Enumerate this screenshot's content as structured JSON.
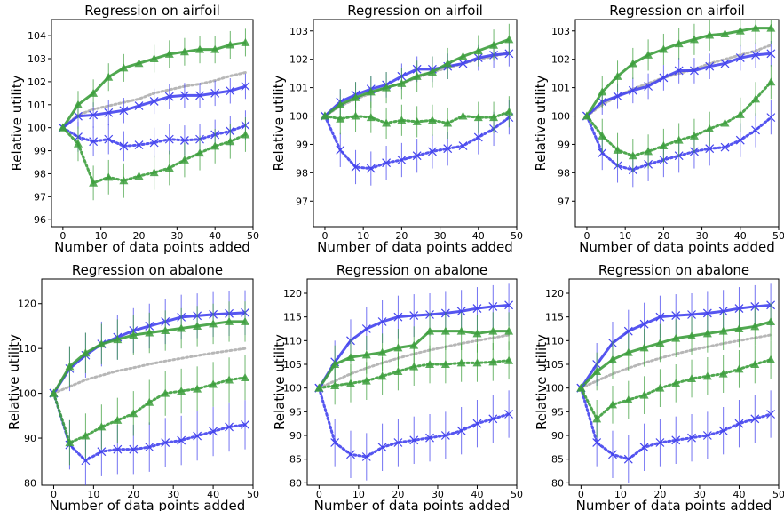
{
  "colors": {
    "blue": "#4444ee",
    "green": "#3d9f3d",
    "gray": "#aaaaaa"
  },
  "chart_data": [
    {
      "type": "line",
      "title": "Regression on airfoil",
      "xlabel": "Number of data points added",
      "ylabel": "Relative utility",
      "xlim": [
        -3,
        50
      ],
      "ylim": [
        95.7,
        104.7
      ],
      "xticks": [
        "0",
        "10",
        "20",
        "30",
        "40",
        "50"
      ],
      "yticks": [
        "96",
        "97",
        "98",
        "99",
        "100",
        "101",
        "102",
        "103",
        "104"
      ],
      "x": [
        0,
        4,
        8,
        12,
        16,
        20,
        24,
        28,
        32,
        36,
        40,
        44,
        48
      ],
      "series": [
        {
          "color": "blue",
          "style": "solid",
          "marker": "x",
          "err": 0.55,
          "values": [
            100,
            100.5,
            100.55,
            100.65,
            100.75,
            100.95,
            101.15,
            101.35,
            101.4,
            101.4,
            101.5,
            101.6,
            101.8
          ]
        },
        {
          "color": "green",
          "style": "solid",
          "marker": "triangle",
          "err": 0.6,
          "values": [
            100,
            101.0,
            101.5,
            102.2,
            102.6,
            102.8,
            103.0,
            103.2,
            103.3,
            103.4,
            103.4,
            103.6,
            103.7
          ]
        },
        {
          "color": "blue",
          "style": "dotted",
          "marker": "x",
          "err": 0.65,
          "values": [
            100,
            99.6,
            99.4,
            99.5,
            99.2,
            99.25,
            99.35,
            99.5,
            99.45,
            99.5,
            99.7,
            99.85,
            100.1
          ]
        },
        {
          "color": "green",
          "style": "dotted",
          "marker": "triangle",
          "err": 0.75,
          "values": [
            100,
            99.3,
            97.6,
            97.85,
            97.7,
            97.9,
            98.05,
            98.25,
            98.6,
            98.9,
            99.2,
            99.4,
            99.7
          ]
        },
        {
          "color": "gray",
          "style": "dotted",
          "marker": "none",
          "err": 0,
          "values": [
            100,
            100.55,
            100.8,
            100.95,
            101.1,
            101.25,
            101.5,
            101.65,
            101.8,
            101.9,
            102.05,
            102.25,
            102.4
          ]
        }
      ]
    },
    {
      "type": "line",
      "title": "Regression on airfoil",
      "xlabel": "Number of data points added",
      "ylabel": "Relative utility",
      "xlim": [
        -3,
        50
      ],
      "ylim": [
        96.1,
        103.4
      ],
      "xticks": [
        "0",
        "10",
        "20",
        "30",
        "40",
        "50"
      ],
      "yticks": [
        "97",
        "98",
        "99",
        "100",
        "101",
        "102",
        "103"
      ],
      "x": [
        0,
        4,
        8,
        12,
        16,
        20,
        24,
        28,
        32,
        36,
        40,
        44,
        48
      ],
      "series": [
        {
          "color": "blue",
          "style": "solid",
          "marker": "x",
          "err": 0.45,
          "values": [
            100,
            100.5,
            100.75,
            100.95,
            101.1,
            101.4,
            101.65,
            101.65,
            101.75,
            101.85,
            102.05,
            102.15,
            102.2
          ]
        },
        {
          "color": "green",
          "style": "solid",
          "marker": "triangle",
          "err": 0.55,
          "values": [
            100,
            100.4,
            100.65,
            100.85,
            101.0,
            101.15,
            101.4,
            101.55,
            101.85,
            102.1,
            102.3,
            102.5,
            102.7
          ]
        },
        {
          "color": "blue",
          "style": "dotted",
          "marker": "x",
          "err": 0.6,
          "values": [
            100,
            98.8,
            98.2,
            98.15,
            98.35,
            98.45,
            98.6,
            98.75,
            98.85,
            98.95,
            99.25,
            99.55,
            99.95
          ]
        },
        {
          "color": "green",
          "style": "dotted",
          "marker": "triangle",
          "err": 0.55,
          "values": [
            100,
            99.9,
            100.0,
            99.95,
            99.75,
            99.85,
            99.8,
            99.85,
            99.75,
            100.0,
            99.95,
            99.95,
            100.15
          ]
        },
        {
          "color": "gray",
          "style": "dotted",
          "marker": "none",
          "err": 0,
          "values": [
            100,
            100.35,
            100.6,
            100.8,
            101.0,
            101.15,
            101.35,
            101.55,
            101.7,
            101.85,
            102.0,
            102.1,
            102.25
          ]
        }
      ]
    },
    {
      "type": "line",
      "title": "Regression on airfoil",
      "xlabel": "Number of data points added",
      "ylabel": "Relative utility",
      "xlim": [
        -3,
        50
      ],
      "ylim": [
        96.1,
        103.4
      ],
      "xticks": [
        "0",
        "10",
        "20",
        "30",
        "40",
        "50"
      ],
      "yticks": [
        "97",
        "98",
        "99",
        "100",
        "101",
        "102",
        "103"
      ],
      "x": [
        0,
        4,
        8,
        12,
        16,
        20,
        24,
        28,
        32,
        36,
        40,
        44,
        48
      ],
      "series": [
        {
          "color": "blue",
          "style": "solid",
          "marker": "x",
          "err": 0.45,
          "values": [
            100,
            100.5,
            100.7,
            100.9,
            101.05,
            101.35,
            101.6,
            101.6,
            101.75,
            101.85,
            102.05,
            102.15,
            102.2
          ]
        },
        {
          "color": "green",
          "style": "solid",
          "marker": "triangle",
          "err": 0.55,
          "values": [
            100,
            100.85,
            101.4,
            101.85,
            102.15,
            102.35,
            102.55,
            102.7,
            102.85,
            102.9,
            103.0,
            103.1,
            103.1
          ]
        },
        {
          "color": "blue",
          "style": "dotted",
          "marker": "x",
          "err": 0.6,
          "values": [
            100,
            98.7,
            98.25,
            98.1,
            98.3,
            98.45,
            98.6,
            98.75,
            98.85,
            98.9,
            99.15,
            99.5,
            99.95
          ]
        },
        {
          "color": "green",
          "style": "dotted",
          "marker": "triangle",
          "err": 0.6,
          "values": [
            100,
            99.3,
            98.8,
            98.6,
            98.75,
            98.95,
            99.15,
            99.3,
            99.55,
            99.75,
            100.05,
            100.6,
            101.2
          ]
        },
        {
          "color": "gray",
          "style": "dotted",
          "marker": "none",
          "err": 0,
          "values": [
            100,
            100.4,
            100.7,
            100.95,
            101.15,
            101.35,
            101.5,
            101.65,
            101.85,
            102.0,
            102.15,
            102.3,
            102.5
          ]
        }
      ]
    },
    {
      "type": "line",
      "title": "Regression on abalone",
      "xlabel": "Number of data points added",
      "ylabel": "Relative utility",
      "xlim": [
        -3,
        50
      ],
      "ylim": [
        79.5,
        125.5
      ],
      "xticks": [
        "0",
        "10",
        "20",
        "30",
        "40",
        "50"
      ],
      "yticks": [
        "80",
        "90",
        "100",
        "110",
        "120"
      ],
      "x": [
        0,
        4,
        8,
        12,
        16,
        20,
        24,
        28,
        32,
        36,
        40,
        44,
        48
      ],
      "series": [
        {
          "color": "blue",
          "style": "solid",
          "marker": "x",
          "err": 5,
          "values": [
            100,
            105.5,
            108.5,
            111.0,
            112.5,
            114.0,
            115.0,
            116.0,
            117.0,
            117.3,
            117.6,
            117.8,
            118.0
          ]
        },
        {
          "color": "green",
          "style": "solid",
          "marker": "triangle",
          "err": 4.5,
          "values": [
            100,
            106.0,
            109.0,
            111.0,
            112.0,
            113.0,
            113.5,
            114.0,
            114.5,
            115.0,
            115.5,
            116.0,
            116.0
          ]
        },
        {
          "color": "blue",
          "style": "dotted",
          "marker": "x",
          "err": 5.5,
          "values": [
            100,
            88.5,
            85.0,
            87.0,
            87.5,
            87.5,
            88.0,
            89.0,
            89.5,
            90.5,
            91.5,
            92.5,
            93.0
          ]
        },
        {
          "color": "green",
          "style": "dotted",
          "marker": "triangle",
          "err": 5,
          "values": [
            100,
            89.0,
            90.5,
            92.5,
            94.0,
            95.5,
            98.0,
            100.0,
            100.5,
            101.0,
            102.0,
            103.0,
            103.5
          ]
        },
        {
          "color": "gray",
          "style": "dotted",
          "marker": "none",
          "err": 0,
          "values": [
            100,
            101.5,
            103.0,
            104.0,
            105.0,
            105.7,
            106.5,
            107.2,
            107.8,
            108.4,
            109.0,
            109.5,
            110.0
          ]
        }
      ]
    },
    {
      "type": "line",
      "title": "Regression on abalone",
      "xlabel": "Number of data points added",
      "ylabel": "Relative utility",
      "xlim": [
        -3,
        50
      ],
      "ylim": [
        79.5,
        123.0
      ],
      "xticks": [
        "0",
        "10",
        "20",
        "30",
        "40",
        "50"
      ],
      "yticks": [
        "80",
        "85",
        "90",
        "95",
        "100",
        "105",
        "110",
        "115",
        "120"
      ],
      "x": [
        0,
        4,
        8,
        12,
        16,
        20,
        24,
        28,
        32,
        36,
        40,
        44,
        48
      ],
      "series": [
        {
          "color": "blue",
          "style": "solid",
          "marker": "x",
          "err": 4.5,
          "values": [
            100,
            105.5,
            110.0,
            112.5,
            114.0,
            115.0,
            115.3,
            115.5,
            115.8,
            116.2,
            116.8,
            117.2,
            117.5
          ]
        },
        {
          "color": "green",
          "style": "solid",
          "marker": "triangle",
          "err": 4,
          "values": [
            100,
            105.0,
            106.5,
            107.0,
            107.5,
            108.5,
            109.0,
            112.0,
            112.0,
            112.0,
            111.5,
            112.0,
            112.0
          ]
        },
        {
          "color": "blue",
          "style": "dotted",
          "marker": "x",
          "err": 5,
          "values": [
            100,
            88.5,
            86.0,
            85.5,
            87.5,
            88.5,
            89.0,
            89.5,
            90.0,
            91.0,
            92.5,
            93.5,
            94.5
          ]
        },
        {
          "color": "green",
          "style": "dotted",
          "marker": "triangle",
          "err": 4,
          "values": [
            100,
            100.5,
            101.0,
            101.5,
            102.5,
            103.5,
            104.5,
            105.0,
            105.0,
            105.3,
            105.3,
            105.5,
            105.8
          ]
        },
        {
          "color": "gray",
          "style": "dotted",
          "marker": "none",
          "err": 0,
          "values": [
            100,
            101.5,
            103.0,
            104.2,
            105.3,
            106.3,
            107.2,
            108.0,
            108.7,
            109.4,
            110.0,
            110.6,
            111.2
          ]
        }
      ]
    },
    {
      "type": "line",
      "title": "Regression on abalone",
      "xlabel": "Number of data points added",
      "ylabel": "Relative utility",
      "xlim": [
        -3,
        50
      ],
      "ylim": [
        79.5,
        123.0
      ],
      "xticks": [
        "0",
        "10",
        "20",
        "30",
        "40",
        "50"
      ],
      "yticks": [
        "80",
        "85",
        "90",
        "95",
        "100",
        "105",
        "110",
        "115",
        "120"
      ],
      "x": [
        0,
        4,
        8,
        12,
        16,
        20,
        24,
        28,
        32,
        36,
        40,
        44,
        48
      ],
      "series": [
        {
          "color": "blue",
          "style": "solid",
          "marker": "x",
          "err": 4.5,
          "values": [
            100,
            105.0,
            109.5,
            112.0,
            113.5,
            115.0,
            115.3,
            115.5,
            115.8,
            116.2,
            116.8,
            117.2,
            117.5
          ]
        },
        {
          "color": "green",
          "style": "solid",
          "marker": "triangle",
          "err": 4,
          "values": [
            100,
            103.5,
            106.0,
            107.5,
            108.5,
            109.5,
            110.5,
            111.0,
            111.5,
            112.0,
            112.5,
            113.0,
            114.0
          ]
        },
        {
          "color": "blue",
          "style": "dotted",
          "marker": "x",
          "err": 5,
          "values": [
            100,
            88.5,
            86.0,
            85.0,
            87.5,
            88.5,
            89.0,
            89.5,
            90.0,
            91.0,
            92.5,
            93.5,
            94.5
          ]
        },
        {
          "color": "green",
          "style": "dotted",
          "marker": "triangle",
          "err": 4,
          "values": [
            100,
            93.5,
            96.5,
            97.5,
            98.5,
            100.0,
            101.0,
            102.0,
            102.5,
            103.0,
            104.0,
            105.0,
            106.0
          ]
        },
        {
          "color": "gray",
          "style": "dotted",
          "marker": "none",
          "err": 0,
          "values": [
            100,
            101.5,
            103.0,
            104.2,
            105.3,
            106.3,
            107.2,
            108.0,
            108.7,
            109.4,
            110.0,
            110.6,
            111.2
          ]
        }
      ]
    }
  ]
}
